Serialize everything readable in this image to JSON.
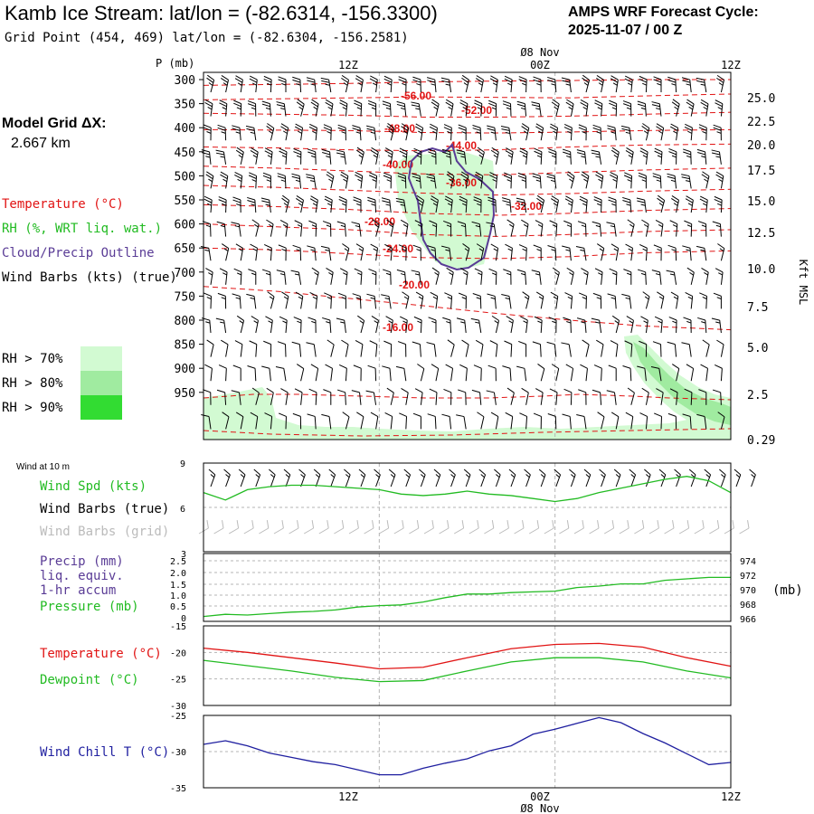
{
  "header": {
    "title": "Kamb Ice Stream:  lat/lon = (-82.6314, -156.3300)",
    "subtitle": "Grid Point (454, 469) lat/lon = (-82.6304, -156.2581)",
    "cycle_label": "AMPS WRF Forecast Cycle:",
    "cycle_value": "2025-11-07 / 00  Z"
  },
  "model_grid": {
    "label": "Model Grid ΔX:",
    "value": "2.667 km"
  },
  "legend": {
    "temperature": "Temperature (°C)",
    "rh": "RH (%, WRT liq. wat.)",
    "cloud": "Cloud/Precip Outline",
    "wind": "Wind Barbs (kts) (true)",
    "rh_levels": [
      {
        "label": "RH > 70%",
        "color": "#d2fad2"
      },
      {
        "label": "RH > 80%",
        "color": "#a0eba0"
      },
      {
        "label": "RH > 90%",
        "color": "#32dc32"
      }
    ]
  },
  "time_axis": {
    "top_ticks": [
      "12Z",
      "00Z",
      "12Z"
    ],
    "date_label": "Ø8 Nov",
    "bottom_ticks": [
      "12Z",
      "00Z",
      "12Z"
    ],
    "bottom_date": "Ø8 Nov"
  },
  "colors": {
    "temperature": "#e11414",
    "rh_fill": "#a0eba0",
    "cloud": "#5a3c96",
    "wind": "#000000",
    "wind_grid": "#bbbbbb",
    "wind_speed": "#22bb22",
    "pressure": "#22bb22",
    "dewpoint": "#22bb22",
    "wind_chill": "#1f1fa0",
    "gridline": "#b4b4b4"
  },
  "chart_data": [
    {
      "type": "line",
      "panel": "upper-air cross section",
      "y_axis_label": "P (mb)",
      "pressure_levels": [
        300,
        350,
        400,
        450,
        500,
        550,
        600,
        650,
        700,
        750,
        800,
        850,
        900,
        950
      ],
      "right_axis_label": "Kft MSL",
      "kft_ticks": [
        "25.0",
        "22.5",
        "20.0",
        "17.5",
        "15.0",
        "12.5",
        "10.0",
        "7.5",
        "5.0",
        "2.5",
        "0.29"
      ],
      "x_range_hours": [
        0,
        36
      ],
      "isotherm_labels": [
        "-56.00",
        "-52.00",
        "-48.00",
        "-44.00",
        "-40.00",
        "-36.00",
        "-32.00",
        "-28.00",
        "-24.00",
        "-20.00",
        "-16.00"
      ],
      "isotherm_levels_mb": {
        "-56.00": [
          312,
          310,
          308,
          305,
          303,
          302,
          300,
          300
        ],
        "-52.00": [
          342,
          340,
          338,
          336,
          337,
          338,
          334,
          330
        ],
        "-48.00": [
          370,
          372,
          374,
          378,
          378,
          376,
          372,
          368
        ],
        "-44.00": [
          404,
          405,
          406,
          410,
          411,
          409,
          406,
          404
        ],
        "-40.00": [
          440,
          442,
          446,
          448,
          446,
          440,
          436,
          434
        ],
        "-36.00": [
          480,
          484,
          490,
          496,
          498,
          493,
          488,
          484
        ],
        "-32.00": [
          520,
          524,
          530,
          536,
          540,
          537,
          532,
          528
        ],
        "-28.00": [
          560,
          564,
          570,
          578,
          582,
          578,
          572,
          568
        ],
        "-24.00": [
          600,
          606,
          612,
          622,
          626,
          622,
          616,
          612
        ],
        "-20.00": [
          650,
          654,
          662,
          670,
          672,
          668,
          660,
          656
        ],
        "-16.00": [
          730,
          740,
          755,
          770,
          786,
          800,
          812,
          820
        ]
      },
      "isotherm_hours": [
        0,
        5,
        10,
        15,
        20,
        25,
        30,
        36
      ]
    },
    {
      "type": "line",
      "panel": "wind at 10 m",
      "title": "Wind at 10 m",
      "series_labels": [
        "Wind Spd (kts)",
        "Wind Barbs (true)",
        "Wind Barbs (grid)"
      ],
      "ylim": [
        3,
        9
      ],
      "y_ticks": [
        9,
        6
      ],
      "x_hours": [
        0,
        1.5,
        3,
        4.5,
        6,
        7.5,
        9,
        10.5,
        12,
        13.5,
        15,
        16.5,
        18,
        19.5,
        21,
        22.5,
        24,
        25.5,
        27,
        28.5,
        30,
        31.5,
        33,
        34.5,
        36
      ],
      "values": [
        7.0,
        6.5,
        7.2,
        7.4,
        7.5,
        7.5,
        7.4,
        7.3,
        7.2,
        6.9,
        6.8,
        6.9,
        7.1,
        6.9,
        6.8,
        6.6,
        6.4,
        6.6,
        7.0,
        7.3,
        7.6,
        7.9,
        8.1,
        7.8,
        7.0
      ]
    },
    {
      "type": "line",
      "panel": "precip and pressure",
      "series_labels": [
        "Precip (mm)",
        "liq. equiv.",
        "1-hr accum",
        "Pressure (mb)"
      ],
      "left_ticks": [
        "3",
        "2.5",
        "2.0",
        "1.5",
        "1.0",
        "0.5",
        "0"
      ],
      "right_ticks": [
        "974",
        "972",
        "970",
        "968",
        "966"
      ],
      "right_axis_label": "(mb)",
      "pressure_range": [
        966,
        974
      ],
      "x_hours": [
        0,
        1.5,
        3,
        4.5,
        6,
        7.5,
        9,
        10.5,
        12,
        13.5,
        15,
        16.5,
        18,
        19.5,
        21,
        22.5,
        24,
        25.5,
        27,
        28.5,
        30,
        31.5,
        33,
        34.5,
        36
      ],
      "pressure_values": [
        966.3,
        966.6,
        966.5,
        966.7,
        966.9,
        967.0,
        967.2,
        967.6,
        967.8,
        967.9,
        968.3,
        968.9,
        969.4,
        969.4,
        969.6,
        969.7,
        969.8,
        970.3,
        970.5,
        970.8,
        970.8,
        971.3,
        971.5,
        971.7,
        971.7
      ],
      "precip_values": [
        0,
        0,
        0,
        0,
        0,
        0,
        0,
        0,
        0,
        0,
        0,
        0,
        0,
        0,
        0,
        0,
        0,
        0,
        0,
        0,
        0,
        0,
        0,
        0,
        0
      ]
    },
    {
      "type": "line",
      "panel": "temperature and dewpoint",
      "series_labels": [
        "Temperature (°C)",
        "Dewpoint (°C)"
      ],
      "ylim": [
        -30,
        -15
      ],
      "y_ticks": [
        -15,
        -20,
        -25,
        -30
      ],
      "x_hours": [
        0,
        3,
        6,
        9,
        12,
        15,
        18,
        21,
        24,
        27,
        30,
        33,
        36
      ],
      "temperature_values": [
        -19.2,
        -20.0,
        -21.0,
        -22.0,
        -23.1,
        -22.8,
        -21.0,
        -19.3,
        -18.5,
        -18.3,
        -19.0,
        -21.0,
        -22.6
      ],
      "dewpoint_values": [
        -21.5,
        -22.5,
        -23.5,
        -24.7,
        -25.5,
        -25.3,
        -23.5,
        -21.8,
        -21.0,
        -21.0,
        -21.8,
        -23.5,
        -24.8
      ]
    },
    {
      "type": "line",
      "panel": "wind chill",
      "series_labels": [
        "Wind Chill T (°C)"
      ],
      "ylim": [
        -35,
        -25
      ],
      "y_ticks": [
        -25,
        -30,
        -35
      ],
      "x_hours": [
        0,
        1.5,
        3,
        4.5,
        6,
        7.5,
        9,
        10.5,
        12,
        13.5,
        15,
        16.5,
        18,
        19.5,
        21,
        22.5,
        24,
        25.5,
        27,
        28.5,
        30,
        31.5,
        33,
        34.5,
        36
      ],
      "values": [
        -29.0,
        -28.5,
        -29.2,
        -30.2,
        -30.8,
        -31.4,
        -31.8,
        -32.5,
        -33.2,
        -33.2,
        -32.3,
        -31.6,
        -31.0,
        -29.9,
        -29.2,
        -27.6,
        -26.9,
        -26.1,
        -25.3,
        -26.0,
        -27.5,
        -28.8,
        -30.3,
        -31.8,
        -31.5
      ]
    }
  ]
}
